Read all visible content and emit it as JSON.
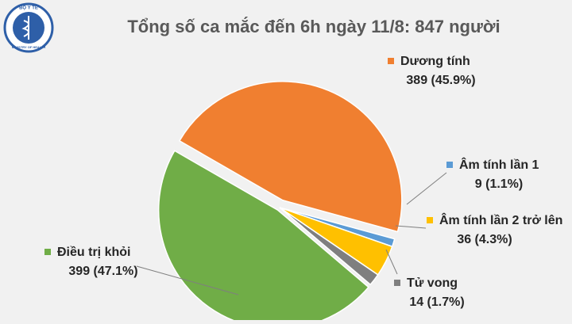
{
  "logo": {
    "top": "BỘ Y TẾ",
    "bottom": "MINISTRY OF HEALTH"
  },
  "chart_data": {
    "type": "pie",
    "title": "Tổng số ca mắc đến 6h ngày 11/8: 847 người",
    "categories": [
      "Dương tính",
      "Âm tính lần 1",
      "Âm tính lần 2 trở lên",
      "Tử vong",
      "Điều trị khỏi"
    ],
    "values": [
      389,
      9,
      36,
      14,
      399
    ],
    "value_labels": [
      "389 (45.9%)",
      "9 (1.1%)",
      "36 (4.3%)",
      "14 (1.7%)",
      "399 (47.1%)"
    ],
    "colors": [
      "#f07f30",
      "#5b9bd5",
      "#ffc000",
      "#7f7f7f",
      "#70ad47"
    ]
  }
}
